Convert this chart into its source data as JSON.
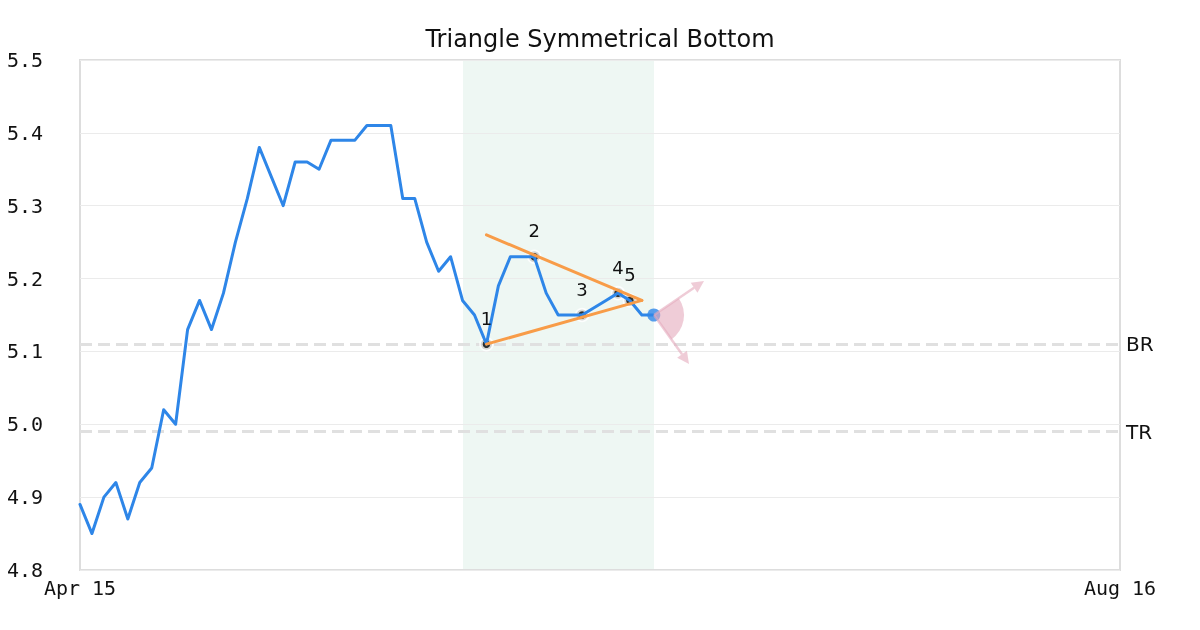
{
  "chart_data": {
    "type": "line",
    "title": "Triangle Symmetrical Bottom",
    "categories": [
      "Apr 15",
      null,
      null,
      null,
      null,
      null,
      null,
      null,
      null,
      null,
      null,
      null,
      null,
      null,
      null,
      null,
      null,
      null,
      null,
      null,
      null,
      null,
      null,
      null,
      null,
      null,
      null,
      null,
      null,
      null,
      null,
      null,
      null,
      null,
      null,
      null,
      null,
      null,
      null,
      null,
      null,
      null,
      null,
      null,
      null,
      null,
      null,
      null,
      null,
      null,
      null,
      null,
      null,
      null,
      null,
      null,
      null,
      null,
      null,
      null,
      null,
      null,
      null,
      null,
      null,
      null,
      null,
      null,
      null,
      null,
      null,
      null,
      null,
      null,
      null,
      null,
      null,
      null,
      null,
      null,
      null,
      null,
      null,
      null,
      null,
      null,
      null,
      "Aug 16"
    ],
    "series": [
      {
        "color": "#2e86e8",
        "values": [
          4.89,
          4.85,
          4.9,
          4.92,
          4.87,
          4.92,
          4.94,
          5.02,
          5,
          5.13,
          5.17,
          5.13,
          5.18,
          5.25,
          5.31,
          5.38,
          5.34,
          5.3,
          5.36,
          5.36,
          5.35,
          5.39,
          5.39,
          5.39,
          5.41,
          5.41,
          5.41,
          5.31,
          5.31,
          5.25,
          5.21,
          5.23,
          5.17,
          5.15,
          5.11,
          5.19,
          5.23,
          5.23,
          5.23,
          5.18,
          5.15,
          5.15,
          5.15,
          5.16,
          5.17,
          5.18,
          5.17,
          5.15,
          5.15,
          null,
          null,
          null,
          null,
          null,
          null,
          null,
          null,
          null,
          null,
          null,
          null,
          null,
          null,
          null,
          null,
          null,
          null,
          null,
          null,
          null,
          null,
          null,
          null,
          null,
          null,
          null,
          null,
          null,
          null,
          null,
          null,
          null,
          null,
          null,
          null,
          null,
          null,
          null
        ]
      },
      {
        "type": "line",
        "color": "#f89c48",
        "values": [
          null,
          null,
          null,
          null,
          null,
          null,
          null,
          null,
          null,
          null,
          null,
          null,
          null,
          null,
          null,
          null,
          null,
          null,
          null,
          null,
          null,
          null,
          null,
          null,
          null,
          null,
          null,
          null,
          null,
          null,
          null,
          null,
          null,
          null,
          5.26,
          null,
          null,
          null,
          null,
          null,
          null,
          null,
          null,
          null,
          null,
          null,
          null,
          5.17,
          null,
          null,
          null,
          null,
          null,
          null,
          null,
          null,
          null,
          null,
          null,
          null,
          null,
          null,
          null,
          null,
          null,
          null,
          null,
          null,
          null,
          null,
          null,
          null,
          null,
          null,
          null,
          null,
          null,
          null,
          null,
          null,
          null,
          null,
          null,
          null,
          null,
          null,
          null,
          null
        ]
      },
      {
        "type": "line",
        "color": "#f89c48",
        "values": [
          null,
          null,
          null,
          null,
          null,
          null,
          null,
          null,
          null,
          null,
          null,
          null,
          null,
          null,
          null,
          null,
          null,
          null,
          null,
          null,
          null,
          null,
          null,
          null,
          null,
          null,
          null,
          null,
          null,
          null,
          null,
          null,
          null,
          null,
          5.11,
          null,
          null,
          null,
          null,
          null,
          null,
          null,
          null,
          null,
          null,
          null,
          null,
          5.17,
          null,
          null,
          null,
          null,
          null,
          null,
          null,
          null,
          null,
          null,
          null,
          null,
          null,
          null,
          null,
          null,
          null,
          null,
          null,
          null,
          null,
          null,
          null,
          null,
          null,
          null,
          null,
          null,
          null,
          null,
          null,
          null,
          null,
          null,
          null,
          null,
          null,
          null,
          null,
          null
        ]
      },
      {
        "type": "scatter",
        "marker": "circle",
        "color": "#000000",
        "values": [
          null,
          null,
          null,
          null,
          null,
          null,
          null,
          null,
          null,
          null,
          null,
          null,
          null,
          null,
          null,
          null,
          null,
          null,
          null,
          null,
          null,
          null,
          null,
          null,
          null,
          null,
          null,
          null,
          null,
          null,
          null,
          null,
          null,
          null,
          5.11,
          null,
          null,
          null,
          5.23,
          null,
          null,
          null,
          5.15,
          null,
          null,
          5.18,
          5.17,
          null,
          null,
          null,
          null,
          null,
          null,
          null,
          null,
          null,
          null,
          null,
          null,
          null,
          null,
          null,
          null,
          null,
          null,
          null,
          null,
          null,
          null,
          null,
          null,
          null,
          null,
          null,
          null,
          null,
          null,
          null,
          null,
          null,
          null,
          null,
          null,
          null,
          null,
          null,
          null,
          null
        ]
      },
      {
        "type": "scatter",
        "marker": "circle",
        "color": "#2e86e8",
        "values": [
          null,
          null,
          null,
          null,
          null,
          null,
          null,
          null,
          null,
          null,
          null,
          null,
          null,
          null,
          null,
          null,
          null,
          null,
          null,
          null,
          null,
          null,
          null,
          null,
          null,
          null,
          null,
          null,
          null,
          null,
          null,
          null,
          null,
          null,
          null,
          null,
          null,
          null,
          null,
          null,
          null,
          null,
          null,
          null,
          null,
          null,
          null,
          null,
          5.15,
          null,
          null,
          null,
          null,
          null,
          null,
          null,
          null,
          null,
          null,
          null,
          null,
          null,
          null,
          null,
          null,
          null,
          null,
          null,
          null,
          null,
          null,
          null,
          null,
          null,
          null,
          null,
          null,
          null,
          null,
          null,
          null,
          null,
          null,
          null,
          null,
          null,
          null,
          null
        ]
      }
    ],
    "annotations": [
      {
        "text": "1",
        "y": 5.11
      },
      {
        "text": "2",
        "y": 5.23
      },
      {
        "text": "3",
        "y": 5.15
      },
      {
        "text": "4",
        "y": 5.18
      },
      {
        "text": "5",
        "y": 5.17
      }
    ],
    "ylim": [
      4.8,
      5.5
    ],
    "yticks": [
      4.8,
      4.9,
      {
        "value": 5,
        "label": "5.0"
      },
      5.1,
      5.2,
      5.3,
      5.4,
      5.5
    ],
    "grid": "y",
    "marker": "none",
    "ref_lines": [
      {
        "axis": "y",
        "value": 5.11,
        "label": "BR",
        "color": "#e0e0e0",
        "line_style": "dashed"
      },
      {
        "axis": "y",
        "value": 4.99,
        "label": "TR",
        "color": "#e0e0e0",
        "line_style": "dashed"
      }
    ]
  }
}
